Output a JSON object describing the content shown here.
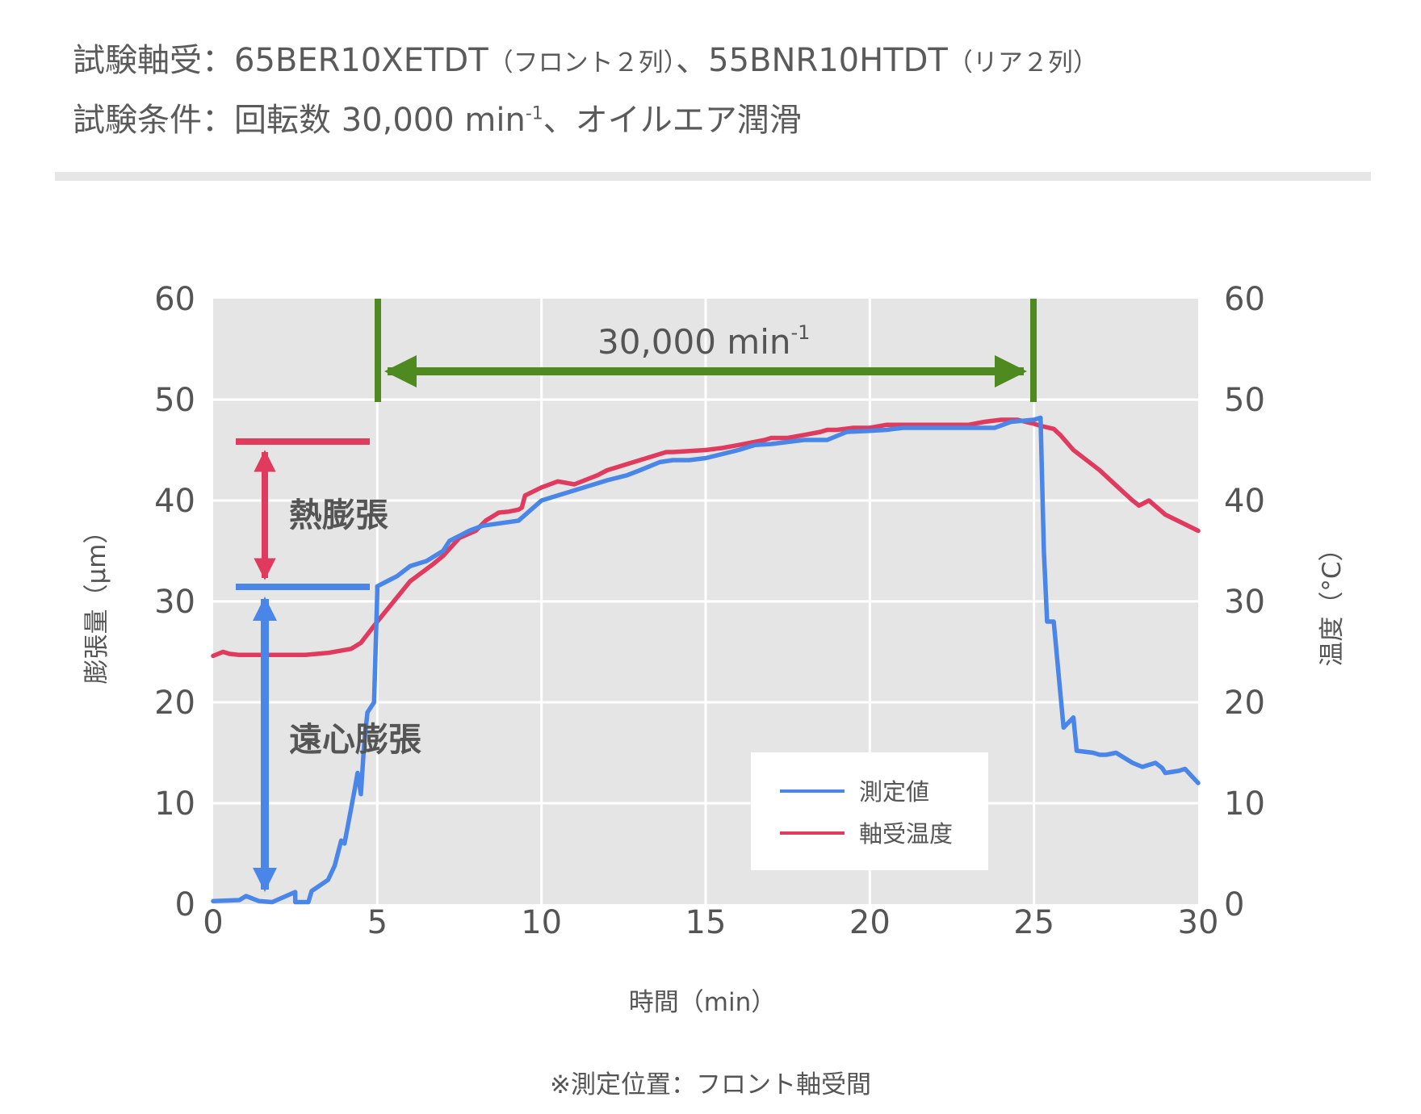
{
  "header": {
    "line1_label": "試験軸受",
    "line1_sep": "：",
    "line1_front_model": "65BER10XETDT",
    "line1_front_note": "（フロント２列）",
    "line1_mid": "、",
    "line1_rear_model": "55BNR10HTDT",
    "line1_rear_note": "（リア２列）",
    "line2_label": "試験条件",
    "line2_sep": "：",
    "line2_text_a": "回転数 30,000 min",
    "line2_sup": "-1",
    "line2_text_b": "、オイルエア潤滑"
  },
  "annotations": {
    "speed_label": "30,000 min",
    "speed_sup": "-1",
    "thermal": "熱膨張",
    "centrifugal": "遠心膨張"
  },
  "footnote": "※測定位置：フロント軸受間",
  "colors": {
    "measured": "#4a86e8",
    "temperature": "#e03a5e",
    "period_marker": "#4e8a1f",
    "plot_background": "#e5e5e5",
    "grid": "#ffffff"
  },
  "chart_data": {
    "type": "line",
    "xlabel": "時間（min）",
    "ylabel_left": "膨張量（μm）",
    "ylabel_right": "温度（°C）",
    "xlim": [
      0,
      30
    ],
    "ylim_left": [
      0,
      60
    ],
    "ylim_right": [
      0,
      60
    ],
    "x_ticks": [
      "0",
      "5",
      "10",
      "15",
      "20",
      "25",
      "30"
    ],
    "y_ticks_left": [
      "0",
      "10",
      "20",
      "30",
      "40",
      "50",
      "60"
    ],
    "y_ticks_right": [
      "0",
      "10",
      "20",
      "30",
      "40",
      "50",
      "60"
    ],
    "grid": true,
    "legend_position": "bottom-right",
    "series": [
      {
        "name": "測定値",
        "axis": "left",
        "x": [
          0,
          0.8,
          1.0,
          1.4,
          1.8,
          2.5,
          2.5,
          2.9,
          3.0,
          3.5,
          3.7,
          3.9,
          4.0,
          4.3,
          4.4,
          4.5,
          4.6,
          4.7,
          4.9,
          5.0,
          5.0,
          5.3,
          5.6,
          6.0,
          6.5,
          7.0,
          7.2,
          7.5,
          7.8,
          8.2,
          9.3,
          10.0,
          11.0,
          12.0,
          12.6,
          13.0,
          13.6,
          14.0,
          14.5,
          15.0,
          16.0,
          16.5,
          17.0,
          18.0,
          18.7,
          19.3,
          20.0,
          20.5,
          21.0,
          22.0,
          23.0,
          23.8,
          24.3,
          25.0,
          25.2,
          25.3,
          25.4,
          25.6,
          25.8,
          25.9,
          26.2,
          26.3,
          26.8,
          27.0,
          27.2,
          27.5,
          28.0,
          28.3,
          28.5,
          28.7,
          28.9,
          29.0,
          29.4,
          29.6,
          30.0
        ],
        "y": [
          0.3,
          0.4,
          0.8,
          0.3,
          0.2,
          1.2,
          0.2,
          0.2,
          1.3,
          2.4,
          3.8,
          6.3,
          6.0,
          11.2,
          13.0,
          10.9,
          16.0,
          19.0,
          20.0,
          31.0,
          31.5,
          32.0,
          32.5,
          33.5,
          34.0,
          35.0,
          36.0,
          36.5,
          37.0,
          37.5,
          38.0,
          40.0,
          41.0,
          42.0,
          42.5,
          43.0,
          43.8,
          44.0,
          44.0,
          44.2,
          45.0,
          45.5,
          45.6,
          46.0,
          46.0,
          46.8,
          46.9,
          47.0,
          47.2,
          47.2,
          47.2,
          47.2,
          47.8,
          48.0,
          48.2,
          35.0,
          28.0,
          28.0,
          21.0,
          17.5,
          18.5,
          15.2,
          15.0,
          14.8,
          14.8,
          15.0,
          14.0,
          13.6,
          13.8,
          14.0,
          13.5,
          13.0,
          13.2,
          13.4,
          12.0
        ]
      },
      {
        "name": "軸受温度",
        "axis": "right",
        "x": [
          0,
          0.3,
          0.5,
          0.8,
          1.0,
          1.5,
          2.0,
          2.8,
          3.5,
          4.2,
          4.5,
          5.0,
          5.5,
          6.0,
          6.7,
          7.0,
          7.5,
          8.0,
          8.3,
          8.7,
          9.0,
          9.3,
          9.4,
          9.5,
          10.0,
          10.5,
          11.0,
          11.7,
          12.0,
          12.5,
          13.0,
          13.8,
          14.0,
          15.0,
          15.5,
          16.0,
          16.8,
          17.0,
          17.5,
          18.0,
          18.5,
          18.7,
          19.0,
          19.5,
          20.0,
          20.5,
          21.0,
          22.0,
          23.0,
          23.5,
          24.0,
          24.5,
          25.0,
          25.2,
          25.6,
          25.8,
          26.2,
          27.0,
          27.5,
          28.0,
          28.2,
          28.5,
          29.0,
          29.5,
          30.0
        ],
        "y": [
          24.6,
          25.0,
          24.8,
          24.7,
          24.7,
          24.7,
          24.7,
          24.7,
          24.9,
          25.3,
          25.9,
          28.0,
          30.0,
          32.0,
          33.7,
          34.5,
          36.3,
          37.0,
          38.0,
          38.8,
          38.9,
          39.1,
          39.3,
          40.5,
          41.3,
          41.9,
          41.6,
          42.5,
          43.0,
          43.5,
          44.0,
          44.8,
          44.8,
          45.0,
          45.2,
          45.5,
          46.0,
          46.2,
          46.2,
          46.5,
          46.8,
          47.0,
          47.0,
          47.2,
          47.2,
          47.5,
          47.5,
          47.5,
          47.5,
          47.8,
          48.0,
          48.0,
          47.6,
          47.4,
          47.1,
          46.5,
          45.0,
          43.0,
          41.5,
          40.0,
          39.5,
          40.0,
          38.6,
          37.8,
          37.0
        ]
      }
    ]
  }
}
